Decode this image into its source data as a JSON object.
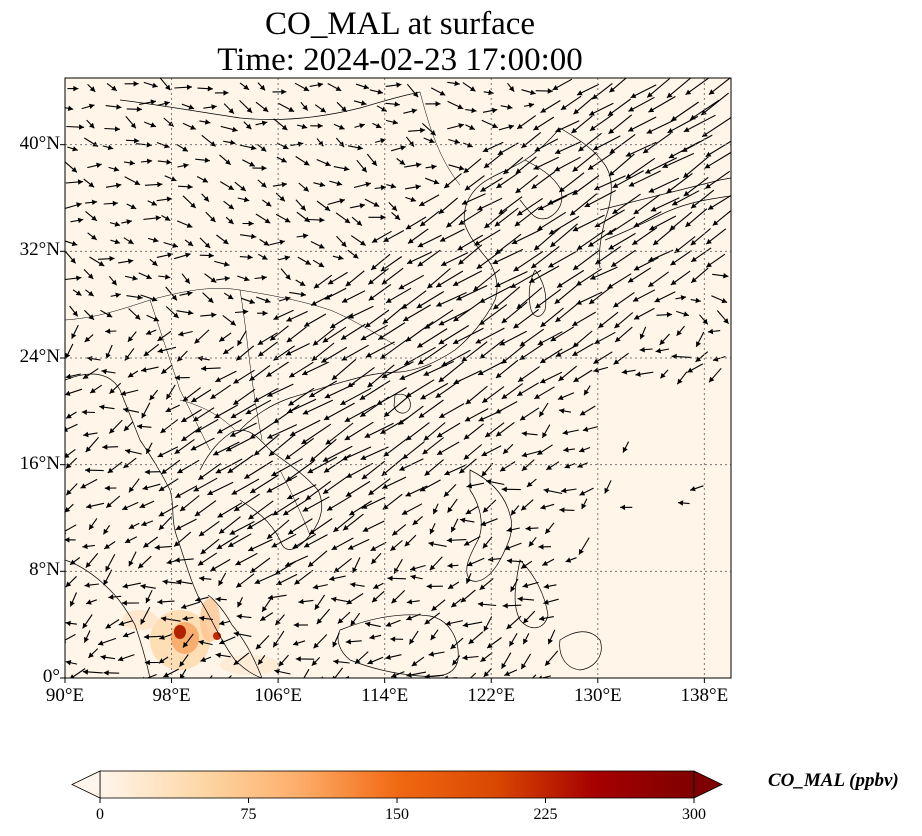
{
  "title": {
    "line1": "CO_MAL at surface",
    "line2": "Time: 2024-02-23 17:00:00"
  },
  "map": {
    "extent": {
      "lon_min": 90,
      "lon_max": 140,
      "lat_min": 0,
      "lat_max": 45
    },
    "lat_ticks": [
      {
        "value": 0,
        "label": "0°"
      },
      {
        "value": 8,
        "label": "8°N"
      },
      {
        "value": 16,
        "label": "16°N"
      },
      {
        "value": 24,
        "label": "24°N"
      },
      {
        "value": 32,
        "label": "32°N"
      },
      {
        "value": 40,
        "label": "40°N"
      }
    ],
    "lon_ticks": [
      {
        "value": 90,
        "label": "90°E"
      },
      {
        "value": 98,
        "label": "98°E"
      },
      {
        "value": 106,
        "label": "106°E"
      },
      {
        "value": 114,
        "label": "114°E"
      },
      {
        "value": 122,
        "label": "122°E"
      },
      {
        "value": 130,
        "label": "130°E"
      },
      {
        "value": 138,
        "label": "138°E"
      }
    ],
    "gridlines": true,
    "field_background_color": "#fff5e8",
    "vector_color": "#000000"
  },
  "colorbar": {
    "label": "CO_MAL (ppbv)",
    "min": 0,
    "max": 300,
    "ticks": [
      {
        "value": 0,
        "label": "0"
      },
      {
        "value": 75,
        "label": "75"
      },
      {
        "value": 150,
        "label": "150"
      },
      {
        "value": 225,
        "label": "225"
      },
      {
        "value": 300,
        "label": "300"
      }
    ],
    "colormap": [
      "#fff5eb",
      "#fdd8a8",
      "#fdae6b",
      "#f16913",
      "#d94801",
      "#a60000",
      "#7f0000"
    ],
    "extend": "both"
  }
}
